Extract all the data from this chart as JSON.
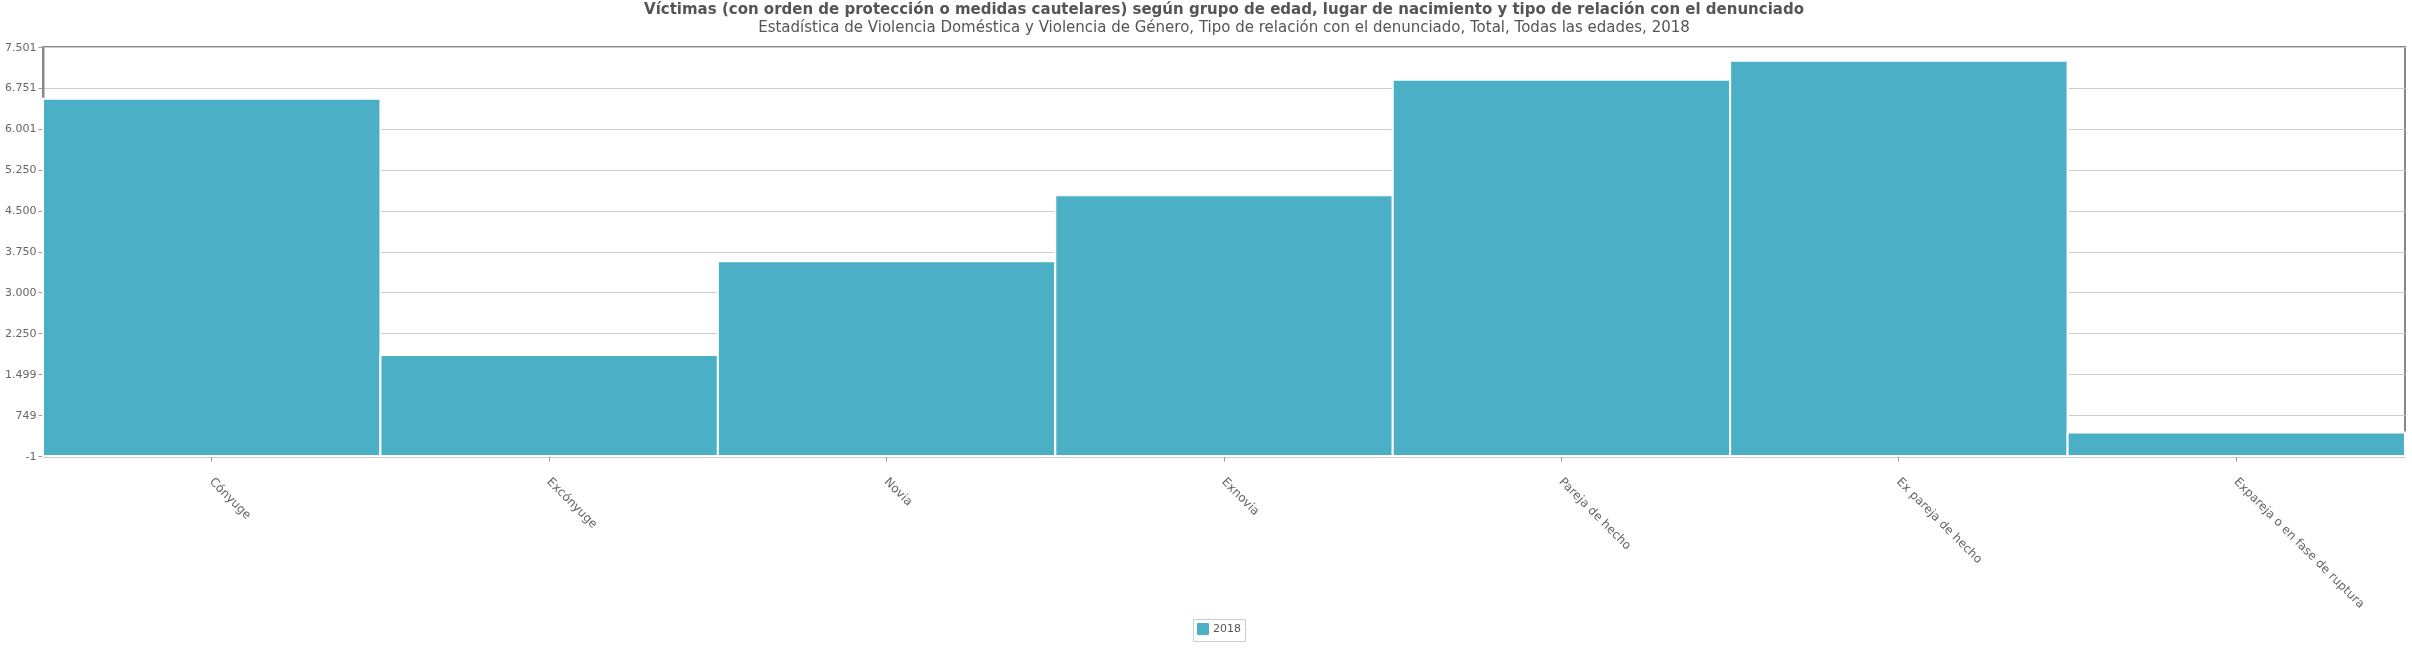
{
  "chart_data": {
    "type": "bar",
    "title": "Víctimas (con orden de protección o medidas cautelares) según grupo de edad, lugar de nacimiento y tipo de relación con el denunciado",
    "subtitle": "Estadística de Violencia Doméstica y Violencia de Género, Tipo de relación con el denunciado, Total, Todas las edades, 2018",
    "categories": [
      "Cónyuge",
      "Excónyuge",
      "Novia",
      "Exnovia",
      "Pareja de hecho",
      "Ex pareja de hecho",
      "Expareja o en fase de ruptura"
    ],
    "series": [
      {
        "name": "2018",
        "color": "#4bb0c6",
        "values": [
          6550,
          1850,
          3570,
          4780,
          6900,
          7250,
          430
        ]
      }
    ],
    "ylim": [
      -1,
      7501
    ],
    "yticks": [
      {
        "value": -1,
        "label": "-1"
      },
      {
        "value": 749,
        "label": "749"
      },
      {
        "value": 1499,
        "label": "1.499"
      },
      {
        "value": 2250,
        "label": "2.250"
      },
      {
        "value": 3000,
        "label": "3.000"
      },
      {
        "value": 3750,
        "label": "3.750"
      },
      {
        "value": 4500,
        "label": "4.500"
      },
      {
        "value": 5250,
        "label": "5.250"
      },
      {
        "value": 6001,
        "label": "6.001"
      },
      {
        "value": 6751,
        "label": "6.751"
      },
      {
        "value": 7501,
        "label": "7.501"
      }
    ],
    "grid": "y",
    "legend": "bottom"
  }
}
